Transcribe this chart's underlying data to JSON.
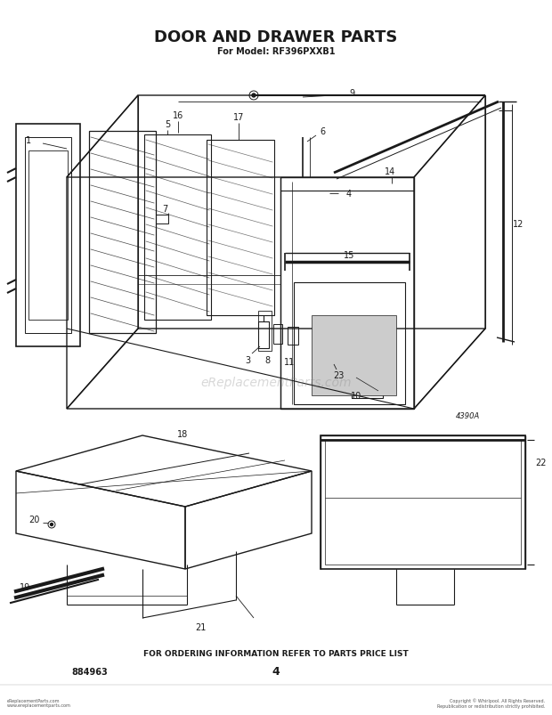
{
  "title": "DOOR AND DRAWER PARTS",
  "subtitle": "For Model: RF396PXXB1",
  "bottom_text": "FOR ORDERING INFORMATION REFER TO PARTS PRICE LIST",
  "page_number": "4",
  "part_number_left": "884963",
  "diagram_code": "4390A",
  "bg_color": "#ffffff",
  "line_color": "#1a1a1a",
  "watermark": "eReplacementParts.com",
  "copyright_left": "eReplacementParts.com\nwww.ereplacementparts.com",
  "copyright_right": "Copyright © Whirlpool. All Rights Reserved.\nRepublication or redistribution strictly prohibited."
}
